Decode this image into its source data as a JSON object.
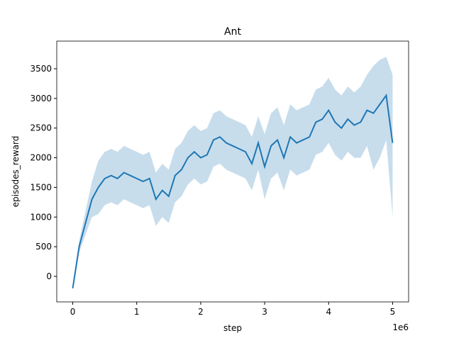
{
  "chart_data": {
    "type": "line",
    "title": "Ant",
    "xlabel": "step",
    "ylabel": "episodes_reward",
    "x_offset_label": "1e6",
    "x": [
      0,
      0.1,
      0.2,
      0.3,
      0.4,
      0.5,
      0.6,
      0.7,
      0.8,
      0.9,
      1.0,
      1.1,
      1.2,
      1.3,
      1.4,
      1.5,
      1.6,
      1.7,
      1.8,
      1.9,
      2.0,
      2.1,
      2.2,
      2.3,
      2.4,
      2.5,
      2.6,
      2.7,
      2.8,
      2.9,
      3.0,
      3.1,
      3.2,
      3.3,
      3.4,
      3.5,
      3.6,
      3.7,
      3.8,
      3.9,
      4.0,
      4.1,
      4.2,
      4.3,
      4.4,
      4.5,
      4.6,
      4.7,
      4.8,
      4.9,
      5.0
    ],
    "series": [
      {
        "color": "#1f77b4",
        "values": [
          -200,
          500,
          900,
          1300,
          1500,
          1650,
          1700,
          1650,
          1750,
          1700,
          1650,
          1600,
          1650,
          1300,
          1450,
          1350,
          1700,
          1800,
          2000,
          2100,
          2000,
          2050,
          2300,
          2350,
          2250,
          2200,
          2150,
          2100,
          1900,
          2250,
          1850,
          2200,
          2300,
          2000,
          2350,
          2250,
          2300,
          2350,
          2600,
          2650,
          2800,
          2600,
          2500,
          2650,
          2550,
          2600,
          2800,
          2750,
          2900,
          3050,
          2250
        ],
        "lower": [
          -230,
          400,
          700,
          1000,
          1050,
          1200,
          1250,
          1200,
          1300,
          1250,
          1200,
          1150,
          1200,
          850,
          1000,
          900,
          1250,
          1350,
          1550,
          1650,
          1550,
          1600,
          1850,
          1900,
          1800,
          1750,
          1700,
          1650,
          1450,
          1800,
          1300,
          1650,
          1750,
          1450,
          1800,
          1700,
          1750,
          1800,
          2050,
          2100,
          2250,
          2050,
          1950,
          2100,
          2000,
          2000,
          2200,
          1800,
          2000,
          2300,
          1000
        ],
        "upper": [
          -170,
          600,
          1100,
          1600,
          1950,
          2100,
          2150,
          2100,
          2200,
          2150,
          2100,
          2050,
          2100,
          1750,
          1900,
          1800,
          2150,
          2250,
          2450,
          2550,
          2450,
          2500,
          2750,
          2800,
          2700,
          2650,
          2600,
          2550,
          2350,
          2700,
          2400,
          2750,
          2850,
          2550,
          2900,
          2800,
          2850,
          2900,
          3150,
          3200,
          3350,
          3150,
          3050,
          3200,
          3100,
          3200,
          3400,
          3550,
          3650,
          3700,
          3400
        ]
      }
    ],
    "xlim": [
      -0.25,
      5.25
    ],
    "ylim": [
      -430,
      3966
    ],
    "xticks": [
      0,
      1,
      2,
      3,
      4,
      5
    ],
    "yticks": [
      0,
      500,
      1000,
      1500,
      2000,
      2500,
      3000,
      3500
    ]
  }
}
